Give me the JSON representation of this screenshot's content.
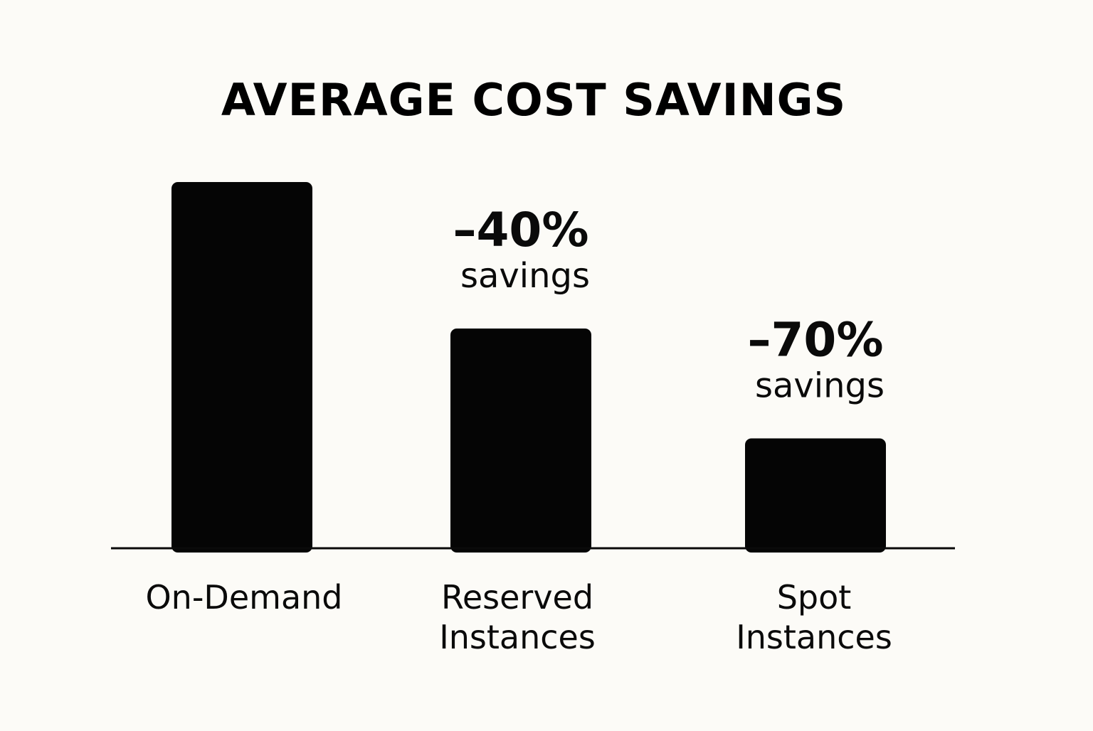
{
  "chart_data": {
    "type": "bar",
    "title": "AVERAGE COST SAVINGS",
    "categories": [
      [
        "On-Demand"
      ],
      [
        "Reserved",
        "Instances"
      ],
      [
        "Spot",
        "Instances"
      ]
    ],
    "values": [
      100,
      60,
      30
    ],
    "annotations": [
      null,
      {
        "value": "–40%",
        "label": "savings"
      },
      {
        "value": "–70%",
        "label": "savings"
      }
    ],
    "ylim": [
      0,
      100
    ],
    "grid": false,
    "legend": "none",
    "colors": {
      "bar": "#050505",
      "axis": "#0a0a0a",
      "text": "#0a0a0a",
      "background": "#fcfbf7"
    }
  }
}
